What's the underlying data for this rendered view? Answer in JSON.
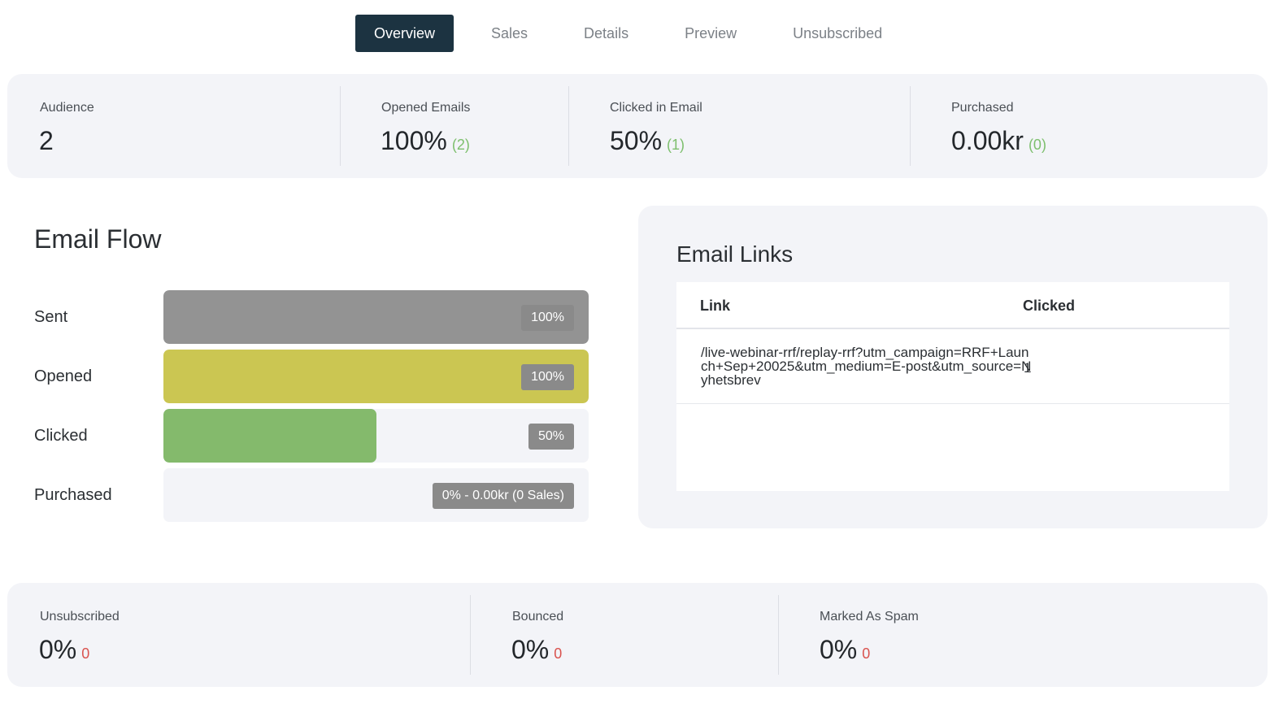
{
  "tabs": [
    {
      "label": "Overview",
      "active": true
    },
    {
      "label": "Sales",
      "active": false
    },
    {
      "label": "Details",
      "active": false
    },
    {
      "label": "Preview",
      "active": false
    },
    {
      "label": "Unsubscribed",
      "active": false
    }
  ],
  "top_stats": {
    "audience": {
      "label": "Audience",
      "value": "2"
    },
    "opened": {
      "label": "Opened Emails",
      "value": "100%",
      "count": "(2)"
    },
    "clicked": {
      "label": "Clicked in Email",
      "value": "50%",
      "count": "(1)"
    },
    "purchased": {
      "label": "Purchased",
      "value": "0.00kr",
      "count": "(0)"
    }
  },
  "email_flow": {
    "title": "Email Flow",
    "rows": [
      {
        "label": "Sent",
        "badge": "100%",
        "fill_fraction": 1.0,
        "color": "#939393"
      },
      {
        "label": "Opened",
        "badge": "100%",
        "fill_fraction": 1.0,
        "color": "#cbc652"
      },
      {
        "label": "Clicked",
        "badge": "50%",
        "fill_fraction": 0.5,
        "color": "#84ba6c"
      },
      {
        "label": "Purchased",
        "badge": "0% - 0.00kr (0 Sales)",
        "fill_fraction": 0.0,
        "color": "#f3f4f8"
      }
    ]
  },
  "email_links": {
    "title": "Email Links",
    "columns": [
      "Link",
      "Clicked"
    ],
    "rows": [
      {
        "link": "/live-webinar-rrf/replay-rrf?utm_campaign=RRF+Launch+Sep+20025&utm_medium=E-post&utm_source=Nyhetsbrev",
        "clicked": "1"
      }
    ]
  },
  "bottom_stats": {
    "unsubscribed": {
      "label": "Unsubscribed",
      "value": "0%",
      "count": "0"
    },
    "bounced": {
      "label": "Bounced",
      "value": "0%",
      "count": "0"
    },
    "spam": {
      "label": "Marked As Spam",
      "value": "0%",
      "count": "0"
    }
  },
  "colors": {
    "tab_active_bg": "#1c3341",
    "card_bg": "#f3f4f8",
    "positive": "#7dbf6d",
    "negative": "#d9534f",
    "badge_bg": "#8a8a8a"
  }
}
